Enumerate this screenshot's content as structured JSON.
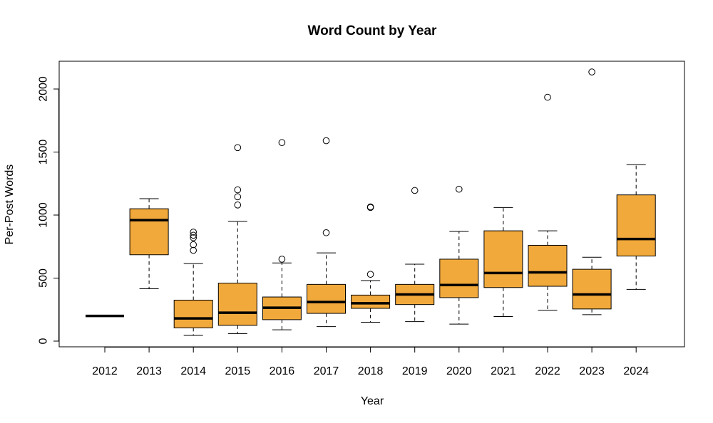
{
  "chart_data": {
    "type": "boxplot",
    "title": "Word Count by Year",
    "xlabel": "Year",
    "ylabel": "Per-Post Words",
    "ylim": [
      0,
      2200
    ],
    "yticks": [
      0,
      500,
      1000,
      1500,
      2000
    ],
    "box_color": "#F2A93B",
    "categories": [
      "2012",
      "2013",
      "2014",
      "2015",
      "2016",
      "2017",
      "2018",
      "2019",
      "2020",
      "2021",
      "2022",
      "2023",
      "2024"
    ],
    "boxes": [
      {
        "min": 200,
        "q1": 200,
        "median": 200,
        "q3": 200,
        "max": 200,
        "outliers": []
      },
      {
        "min": 415,
        "q1": 685,
        "median": 960,
        "q3": 1050,
        "max": 1130,
        "outliers": []
      },
      {
        "min": 45,
        "q1": 105,
        "median": 180,
        "q3": 325,
        "max": 615,
        "outliers": [
          720,
          765,
          820,
          840,
          865
        ]
      },
      {
        "min": 60,
        "q1": 125,
        "median": 225,
        "q3": 460,
        "max": 950,
        "outliers": [
          1080,
          1145,
          1200,
          1535
        ]
      },
      {
        "min": 90,
        "q1": 170,
        "median": 265,
        "q3": 350,
        "max": 620,
        "outliers": [
          650,
          1575
        ]
      },
      {
        "min": 115,
        "q1": 220,
        "median": 310,
        "q3": 450,
        "max": 700,
        "outliers": [
          860,
          1590
        ]
      },
      {
        "min": 150,
        "q1": 260,
        "median": 300,
        "q3": 365,
        "max": 480,
        "outliers": [
          530,
          1060,
          1065
        ]
      },
      {
        "min": 155,
        "q1": 290,
        "median": 370,
        "q3": 450,
        "max": 610,
        "outliers": [
          1195
        ]
      },
      {
        "min": 135,
        "q1": 345,
        "median": 445,
        "q3": 650,
        "max": 870,
        "outliers": [
          1205
        ]
      },
      {
        "min": 195,
        "q1": 425,
        "median": 540,
        "q3": 875,
        "max": 1060,
        "outliers": []
      },
      {
        "min": 245,
        "q1": 435,
        "median": 545,
        "q3": 760,
        "max": 875,
        "outliers": [
          1935
        ]
      },
      {
        "min": 210,
        "q1": 255,
        "median": 370,
        "q3": 570,
        "max": 665,
        "outliers": [
          2135
        ]
      },
      {
        "min": 410,
        "q1": 675,
        "median": 810,
        "q3": 1160,
        "max": 1400,
        "outliers": []
      }
    ]
  }
}
